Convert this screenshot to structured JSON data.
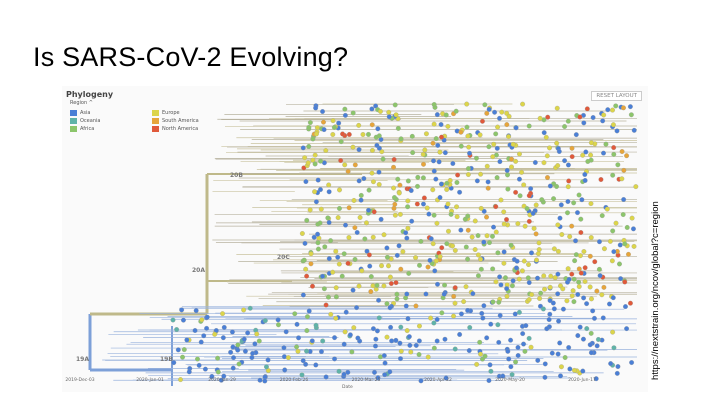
{
  "slide": {
    "title": "Is SARS-CoV-2 Evolving?",
    "source_url": "https://nextstrain.org/ncov/global?c=region"
  },
  "panel": {
    "title": "Phylogeny",
    "reset_label": "RESET LAYOUT",
    "legend_header": "Region ^",
    "legend": [
      {
        "label": "Asia",
        "color": "#4a7fd6"
      },
      {
        "label": "Oceania",
        "color": "#5fb3a8"
      },
      {
        "label": "Africa",
        "color": "#8cc56b"
      },
      {
        "label": "Europe",
        "color": "#dcd54a"
      },
      {
        "label": "South America",
        "color": "#e6a53a"
      },
      {
        "label": "North America",
        "color": "#e0593a"
      }
    ],
    "clades": [
      "19A",
      "19B",
      "20A",
      "20B",
      "20C"
    ],
    "x_ticks": [
      "2019-Dec-03",
      "2020-Jan-01",
      "2020-Jan-29",
      "2020-Feb-26",
      "2020-Mar-25",
      "2020-Apr-22",
      "2020-May-20",
      "2020-Jun-17"
    ],
    "x_axis_label": "Date"
  }
}
